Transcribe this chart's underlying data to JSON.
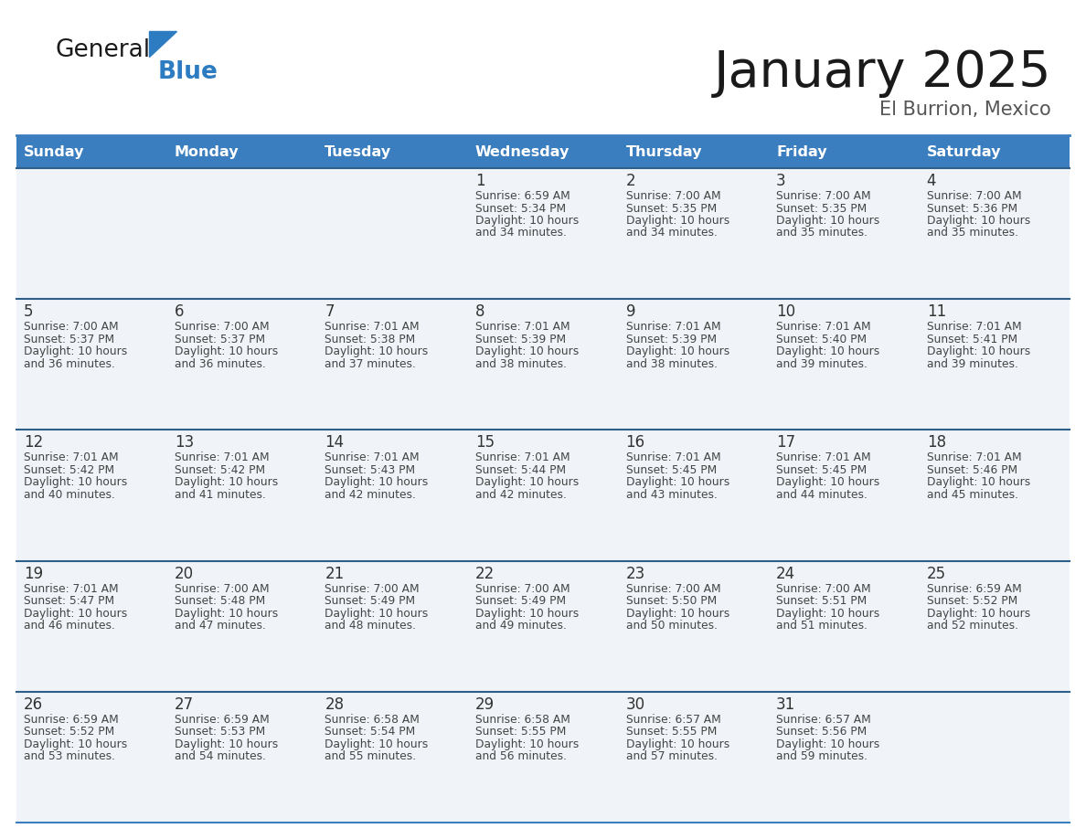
{
  "title": "January 2025",
  "subtitle": "El Burrion, Mexico",
  "days_of_week": [
    "Sunday",
    "Monday",
    "Tuesday",
    "Wednesday",
    "Thursday",
    "Friday",
    "Saturday"
  ],
  "header_bg": "#3a7ebf",
  "header_text": "#ffffff",
  "cell_bg": "#f0f4f8",
  "separator_color": "#3a7ebf",
  "separator_color_dark": "#2d5f8a",
  "text_color": "#333333",
  "calendar_data": [
    [
      null,
      null,
      null,
      {
        "day": 1,
        "sunrise": "6:59 AM",
        "sunset": "5:34 PM",
        "daylight_min": "34"
      },
      {
        "day": 2,
        "sunrise": "7:00 AM",
        "sunset": "5:35 PM",
        "daylight_min": "34"
      },
      {
        "day": 3,
        "sunrise": "7:00 AM",
        "sunset": "5:35 PM",
        "daylight_min": "35"
      },
      {
        "day": 4,
        "sunrise": "7:00 AM",
        "sunset": "5:36 PM",
        "daylight_min": "35"
      }
    ],
    [
      {
        "day": 5,
        "sunrise": "7:00 AM",
        "sunset": "5:37 PM",
        "daylight_min": "36"
      },
      {
        "day": 6,
        "sunrise": "7:00 AM",
        "sunset": "5:37 PM",
        "daylight_min": "36"
      },
      {
        "day": 7,
        "sunrise": "7:01 AM",
        "sunset": "5:38 PM",
        "daylight_min": "37"
      },
      {
        "day": 8,
        "sunrise": "7:01 AM",
        "sunset": "5:39 PM",
        "daylight_min": "38"
      },
      {
        "day": 9,
        "sunrise": "7:01 AM",
        "sunset": "5:39 PM",
        "daylight_min": "38"
      },
      {
        "day": 10,
        "sunrise": "7:01 AM",
        "sunset": "5:40 PM",
        "daylight_min": "39"
      },
      {
        "day": 11,
        "sunrise": "7:01 AM",
        "sunset": "5:41 PM",
        "daylight_min": "39"
      }
    ],
    [
      {
        "day": 12,
        "sunrise": "7:01 AM",
        "sunset": "5:42 PM",
        "daylight_min": "40"
      },
      {
        "day": 13,
        "sunrise": "7:01 AM",
        "sunset": "5:42 PM",
        "daylight_min": "41"
      },
      {
        "day": 14,
        "sunrise": "7:01 AM",
        "sunset": "5:43 PM",
        "daylight_min": "42"
      },
      {
        "day": 15,
        "sunrise": "7:01 AM",
        "sunset": "5:44 PM",
        "daylight_min": "42"
      },
      {
        "day": 16,
        "sunrise": "7:01 AM",
        "sunset": "5:45 PM",
        "daylight_min": "43"
      },
      {
        "day": 17,
        "sunrise": "7:01 AM",
        "sunset": "5:45 PM",
        "daylight_min": "44"
      },
      {
        "day": 18,
        "sunrise": "7:01 AM",
        "sunset": "5:46 PM",
        "daylight_min": "45"
      }
    ],
    [
      {
        "day": 19,
        "sunrise": "7:01 AM",
        "sunset": "5:47 PM",
        "daylight_min": "46"
      },
      {
        "day": 20,
        "sunrise": "7:00 AM",
        "sunset": "5:48 PM",
        "daylight_min": "47"
      },
      {
        "day": 21,
        "sunrise": "7:00 AM",
        "sunset": "5:49 PM",
        "daylight_min": "48"
      },
      {
        "day": 22,
        "sunrise": "7:00 AM",
        "sunset": "5:49 PM",
        "daylight_min": "49"
      },
      {
        "day": 23,
        "sunrise": "7:00 AM",
        "sunset": "5:50 PM",
        "daylight_min": "50"
      },
      {
        "day": 24,
        "sunrise": "7:00 AM",
        "sunset": "5:51 PM",
        "daylight_min": "51"
      },
      {
        "day": 25,
        "sunrise": "6:59 AM",
        "sunset": "5:52 PM",
        "daylight_min": "52"
      }
    ],
    [
      {
        "day": 26,
        "sunrise": "6:59 AM",
        "sunset": "5:52 PM",
        "daylight_min": "53"
      },
      {
        "day": 27,
        "sunrise": "6:59 AM",
        "sunset": "5:53 PM",
        "daylight_min": "54"
      },
      {
        "day": 28,
        "sunrise": "6:58 AM",
        "sunset": "5:54 PM",
        "daylight_min": "55"
      },
      {
        "day": 29,
        "sunrise": "6:58 AM",
        "sunset": "5:55 PM",
        "daylight_min": "56"
      },
      {
        "day": 30,
        "sunrise": "6:57 AM",
        "sunset": "5:55 PM",
        "daylight_min": "57"
      },
      {
        "day": 31,
        "sunrise": "6:57 AM",
        "sunset": "5:56 PM",
        "daylight_min": "59"
      },
      null
    ]
  ],
  "logo_general_color": "#1a1a1a",
  "logo_blue_color": "#2d7cc1"
}
